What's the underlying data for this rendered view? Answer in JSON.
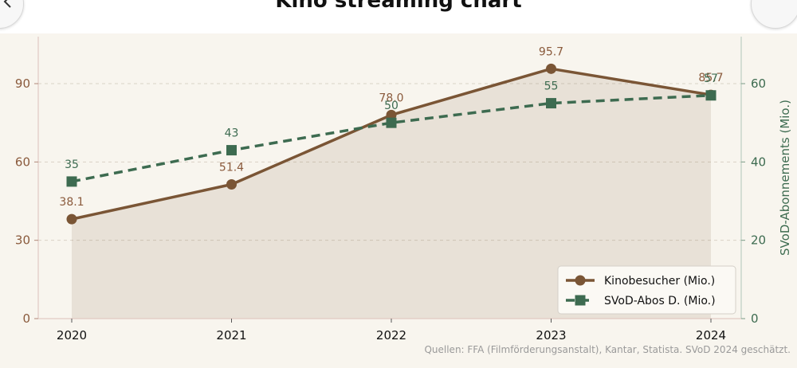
{
  "window": {
    "title": "Kino streaming chart"
  },
  "chart_data": {
    "type": "line",
    "categories": [
      "2020",
      "2021",
      "2022",
      "2023",
      "2024"
    ],
    "series": [
      {
        "name": "Kinobesucher (Mio.)",
        "axis": "left",
        "values": [
          38.1,
          51.4,
          78.0,
          95.7,
          85.7
        ],
        "labels": [
          "38.1",
          "51.4",
          "78.0",
          "95.7",
          "85.7"
        ],
        "color": "#7a5535",
        "marker": "circle",
        "style": "solid",
        "filled_area": true
      },
      {
        "name": "SVoD-Abos D. (Mio.)",
        "axis": "right",
        "values": [
          35,
          43,
          50,
          55,
          57
        ],
        "labels": [
          "35",
          "43",
          "50",
          "55",
          "57"
        ],
        "color": "#3d6b50",
        "marker": "square",
        "style": "dashed",
        "filled_area": false
      }
    ],
    "y_left": {
      "ylim": [
        0,
        108
      ],
      "ticks": [
        0,
        30,
        60,
        90
      ],
      "tick_color": "#8a5a3c"
    },
    "y_right": {
      "label": "SVoD-Abonnements (Mio.)",
      "ylim": [
        0,
        72
      ],
      "ticks": [
        0,
        20,
        40,
        60
      ],
      "tick_color": "#3d6b50"
    },
    "grid": "horizontal-dashed",
    "legend_position": "bottom-right",
    "background": "#f8f5ee",
    "source_note": "Quellen: FFA (Filmförderungsanstalt), Kantar, Statista. SVoD 2024 geschätzt."
  }
}
